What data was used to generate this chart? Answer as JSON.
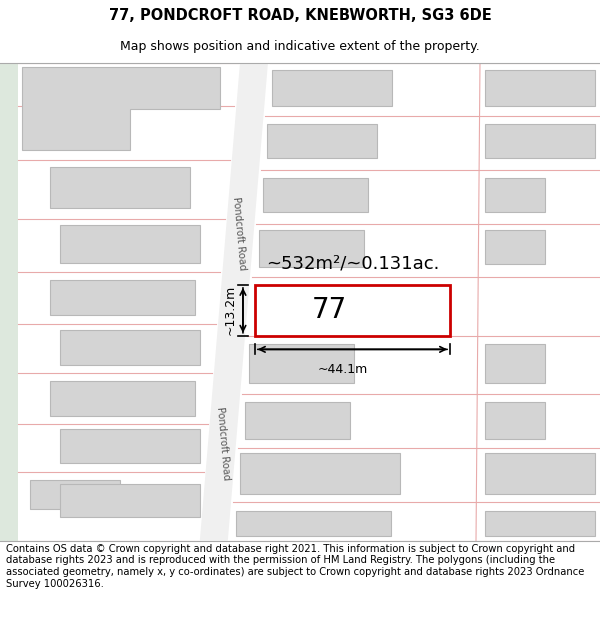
{
  "title": "77, PONDCROFT ROAD, KNEBWORTH, SG3 6DE",
  "subtitle": "Map shows position and indicative extent of the property.",
  "footer": "Contains OS data © Crown copyright and database right 2021. This information is subject to Crown copyright and database rights 2023 and is reproduced with the permission of HM Land Registry. The polygons (including the associated geometry, namely x, y co-ordinates) are subject to Crown copyright and database rights 2023 Ordnance Survey 100026316.",
  "area_text": "~532m²/~0.131ac.",
  "width_label": "~44.1m",
  "height_label": "~13.2m",
  "property_number": "77",
  "bg_color": "#ffffff",
  "map_bg": "#ffffff",
  "road_fill": "#f0f0f0",
  "road_line_color": "#e8aaaa",
  "building_fill": "#d4d4d4",
  "building_edge": "#b8b8b8",
  "highlight_fill": "#ffffff",
  "highlight_edge": "#cc0000",
  "green_strip": "#dde8dd",
  "title_fontsize": 10.5,
  "subtitle_fontsize": 9,
  "footer_fontsize": 7.2
}
